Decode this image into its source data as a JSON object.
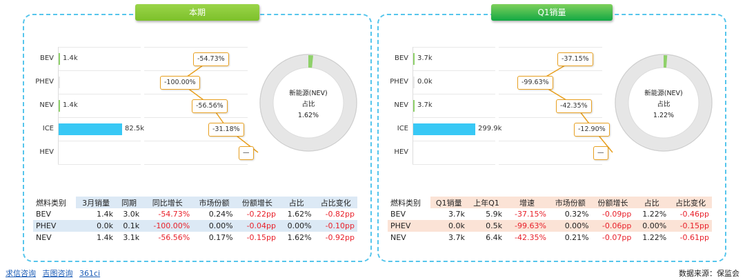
{
  "left": {
    "title": "本期",
    "title_color": "#8fcc3c",
    "bars": [
      {
        "cat": "BEV",
        "value": 1.4,
        "label": "1.4k",
        "change": "-54.73%"
      },
      {
        "cat": "PHEV",
        "value": 0.0,
        "label": "",
        "change": "-100.00%"
      },
      {
        "cat": "NEV",
        "value": 1.4,
        "label": "1.4k",
        "change": "-56.56%"
      },
      {
        "cat": "ICE",
        "value": 82.5,
        "label": "82.5k",
        "change": "-31.18%"
      },
      {
        "cat": "HEV",
        "value": 0,
        "label": "",
        "change": "—"
      }
    ],
    "donut": {
      "line1": "新能源(NEV)",
      "line2": "占比",
      "line3": "1.62%",
      "share": 0.0162
    },
    "table": {
      "headers": [
        "燃料类别",
        "3月销量",
        "同期",
        "同比增长",
        "市场份额",
        "份额增长",
        "占比",
        "占比变化"
      ],
      "header_bg": "#dce9f5",
      "rows": [
        [
          "BEV",
          "1.4k",
          "3.0k",
          "-54.73%",
          "0.24%",
          "-0.22pp",
          "1.62%",
          "-0.82pp"
        ],
        [
          "PHEV",
          "0.0k",
          "0.1k",
          "-100.00%",
          "0.00%",
          "-0.04pp",
          "0.00%",
          "-0.10pp"
        ],
        [
          "NEV",
          "1.4k",
          "3.1k",
          "-56.56%",
          "0.17%",
          "-0.15pp",
          "1.62%",
          "-0.92pp"
        ]
      ]
    }
  },
  "right": {
    "title": "Q1销量",
    "title_color": "#22b34c",
    "bars": [
      {
        "cat": "BEV",
        "value": 3.7,
        "label": "3.7k",
        "change": "-37.15%"
      },
      {
        "cat": "PHEV",
        "value": 0.0,
        "label": "0.0k",
        "change": "-99.63%"
      },
      {
        "cat": "NEV",
        "value": 3.7,
        "label": "3.7k",
        "change": "-42.35%"
      },
      {
        "cat": "ICE",
        "value": 299.9,
        "label": "299.9k",
        "change": "-12.90%"
      },
      {
        "cat": "HEV",
        "value": 0,
        "label": "",
        "change": "—"
      }
    ],
    "donut": {
      "line1": "新能源(NEV)",
      "line2": "占比",
      "line3": "1.22%",
      "share": 0.0122
    },
    "table": {
      "headers": [
        "燃料类别",
        "Q1销量",
        "上年Q1",
        "增速",
        "市场份额",
        "份额增长",
        "占比",
        "占比变化"
      ],
      "header_bg": "#fbe3d6",
      "rows": [
        [
          "BEV",
          "3.7k",
          "5.9k",
          "-37.15%",
          "0.32%",
          "-0.09pp",
          "1.22%",
          "-0.46pp"
        ],
        [
          "PHEV",
          "0.0k",
          "0.5k",
          "-99.63%",
          "0.00%",
          "-0.06pp",
          "0.00%",
          "-0.15pp"
        ],
        [
          "NEV",
          "3.7k",
          "6.4k",
          "-42.35%",
          "0.21%",
          "-0.07pp",
          "1.22%",
          "-0.61pp"
        ]
      ]
    }
  },
  "footer": {
    "links": [
      "求信咨询",
      "吉图咨询",
      "361ci"
    ],
    "source": "数据来源：保监会"
  },
  "colors": {
    "bev": "#8fd16a",
    "ice": "#38c8f5",
    "connector": "#e8a020",
    "negative": "#e8202a"
  }
}
